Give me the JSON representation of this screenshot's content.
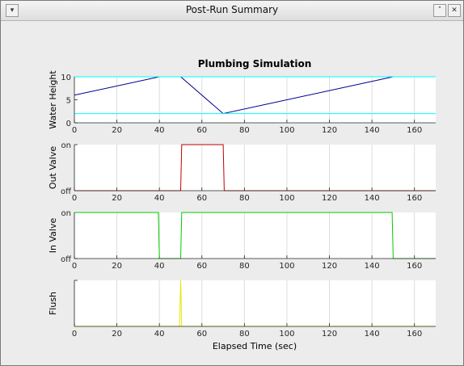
{
  "window": {
    "title": "Post-Run Summary",
    "menu_icon": "down-arrow-icon",
    "shade_icon": "chevron-up-icon",
    "close_icon": "close-icon"
  },
  "figure": {
    "title": "Plumbing Simulation",
    "xlabel": "Elapsed Time (sec)"
  },
  "chart_data": [
    {
      "type": "line",
      "ylabel": "Water Height",
      "xlim": [
        0,
        170
      ],
      "ylim": [
        0,
        10
      ],
      "xticks": [
        0,
        20,
        40,
        60,
        80,
        100,
        120,
        140,
        160
      ],
      "yticks": [
        0,
        5,
        10
      ],
      "ytick_labels": [
        "0",
        "5",
        "10"
      ],
      "grid": "x",
      "series": [
        {
          "color": "#00008b",
          "x": [
            0,
            40,
            50,
            70,
            150
          ],
          "y": [
            6,
            10,
            10,
            2,
            10
          ]
        },
        {
          "color": "#00ffff",
          "x": [
            0,
            170
          ],
          "y": [
            10,
            10
          ]
        },
        {
          "color": "#00ffff",
          "x": [
            0,
            170
          ],
          "y": [
            2,
            2
          ]
        }
      ]
    },
    {
      "type": "line",
      "ylabel": "Out Valve",
      "xlim": [
        0,
        170
      ],
      "ylim": [
        0,
        1
      ],
      "xticks": [
        0,
        20,
        40,
        60,
        80,
        100,
        120,
        140,
        160
      ],
      "yticks": [
        0,
        1
      ],
      "ytick_labels": [
        "off",
        "on"
      ],
      "grid": "x",
      "series": [
        {
          "color": "#c00000",
          "x": [
            0,
            50,
            50.5,
            70,
            70.5,
            170
          ],
          "y": [
            0,
            0,
            1,
            1,
            0,
            0
          ]
        }
      ]
    },
    {
      "type": "line",
      "ylabel": "In Valve",
      "xlim": [
        0,
        170
      ],
      "ylim": [
        0,
        1
      ],
      "xticks": [
        0,
        20,
        40,
        60,
        80,
        100,
        120,
        140,
        160
      ],
      "yticks": [
        0,
        1
      ],
      "ytick_labels": [
        "off",
        "on"
      ],
      "grid": "x",
      "series": [
        {
          "color": "#00cc00",
          "x": [
            0,
            39.5,
            40,
            50,
            50.5,
            149.5,
            150,
            170
          ],
          "y": [
            1,
            1,
            0,
            0,
            1,
            1,
            0,
            0
          ]
        }
      ]
    },
    {
      "type": "line",
      "ylabel": "Flush",
      "xlim": [
        0,
        170
      ],
      "ylim": [
        0,
        1
      ],
      "xticks": [
        0,
        20,
        40,
        60,
        80,
        100,
        120,
        140,
        160
      ],
      "yticks": [
        0,
        1
      ],
      "ytick_labels": [
        "",
        ""
      ],
      "grid": "x",
      "series": [
        {
          "color": "#e6e600",
          "x": [
            0,
            49.5,
            50,
            50.5,
            170
          ],
          "y": [
            0,
            0,
            1,
            0,
            0
          ]
        }
      ]
    }
  ]
}
